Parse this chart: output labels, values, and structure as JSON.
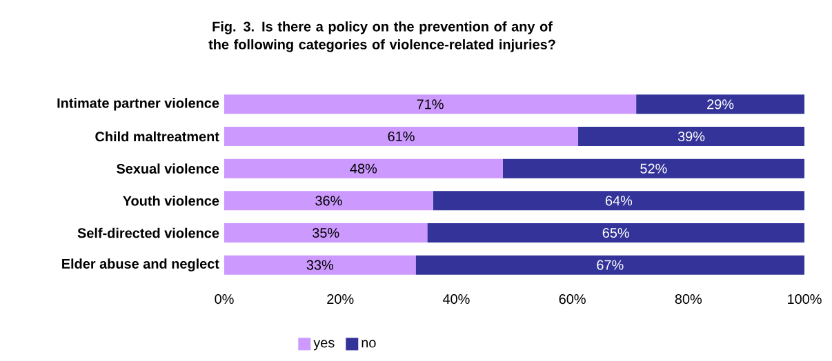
{
  "chart_data": {
    "type": "bar",
    "orientation": "horizontal",
    "stacked": true,
    "title": "Fig. 3. Is there a policy on the prevention of any of the following categories of violence-related injuries?",
    "categories": [
      "Intimate partner violence",
      "Child maltreatment",
      "Sexual violence",
      "Youth violence",
      "Self-directed violence",
      "Elder abuse and neglect"
    ],
    "series": [
      {
        "name": "yes",
        "color": "#cc99ff",
        "values": [
          71,
          61,
          48,
          36,
          35,
          33
        ],
        "value_labels": [
          "71%",
          "61%",
          "48%",
          "36%",
          "35%",
          "33%"
        ]
      },
      {
        "name": "no",
        "color": "#333399",
        "values": [
          29,
          39,
          52,
          64,
          65,
          67
        ],
        "value_labels": [
          "29%",
          "39%",
          "52%",
          "64%",
          "65%",
          "67%"
        ]
      }
    ],
    "xlim": [
      0,
      100
    ],
    "xticks": [
      {
        "value": 0,
        "label": "0%"
      },
      {
        "value": 20,
        "label": "20%"
      },
      {
        "value": 40,
        "label": "40%"
      },
      {
        "value": 60,
        "label": "60%"
      },
      {
        "value": 80,
        "label": "80%"
      },
      {
        "value": 100,
        "label": "100%"
      }
    ],
    "legend": "bottom",
    "grid": false
  }
}
